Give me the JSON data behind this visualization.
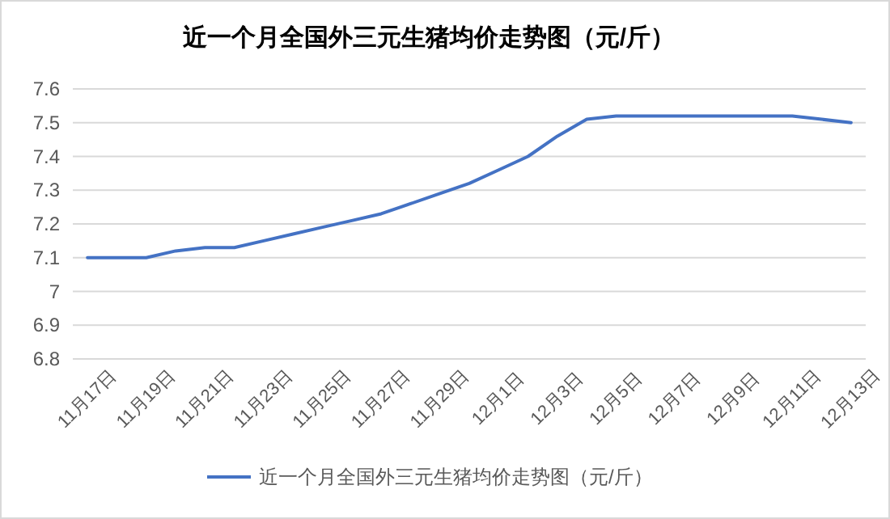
{
  "chart_data": {
    "type": "line",
    "title": "近一个月全国外三元生猪均价走势图（元/斤）",
    "categories": [
      "11月17日",
      null,
      "11月19日",
      null,
      "11月21日",
      null,
      "11月23日",
      null,
      "11月25日",
      null,
      "11月27日",
      null,
      "11月29日",
      null,
      "12月1日",
      null,
      "12月3日",
      null,
      "12月5日",
      null,
      "12月7日",
      null,
      "12月9日",
      null,
      "12月11日",
      null,
      "12月13日"
    ],
    "series": [
      {
        "name": "近一个月全国外三元生猪均价走势图（元/斤）",
        "color": "#4472c4",
        "values": [
          7.1,
          7.1,
          7.1,
          7.12,
          7.13,
          7.13,
          7.15,
          7.17,
          7.19,
          7.21,
          7.23,
          7.26,
          7.29,
          7.32,
          7.36,
          7.4,
          7.46,
          7.51,
          7.52,
          7.52,
          7.52,
          7.52,
          7.52,
          7.52,
          7.52,
          7.51,
          7.5
        ]
      }
    ],
    "ylim": [
      6.8,
      7.6
    ],
    "yticks": [
      6.8,
      6.9,
      7,
      7.1,
      7.2,
      7.3,
      7.4,
      7.5,
      7.6
    ],
    "grid": "y",
    "legend": "bottom",
    "marker": "none",
    "line_style": "solid"
  }
}
